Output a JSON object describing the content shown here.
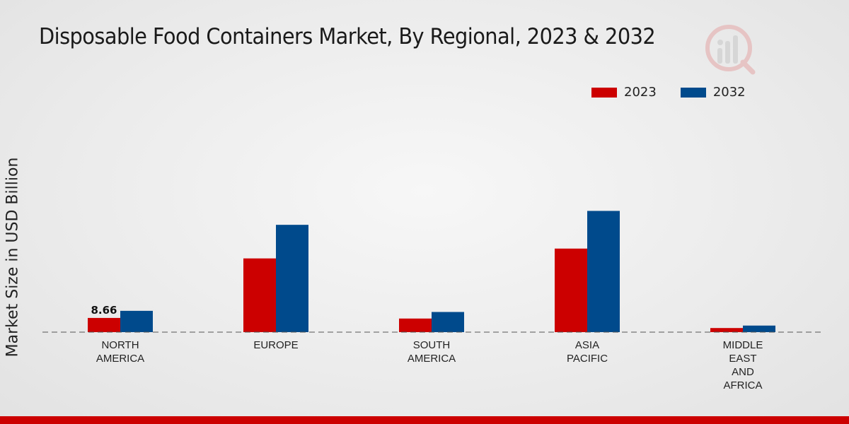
{
  "chart_data": {
    "type": "bar",
    "title": "Disposable Food Containers Market, By Regional, 2023 & 2032",
    "xlabel": "",
    "ylabel": "Market Size in USD Billion",
    "categories": [
      "NORTH\nAMERICA",
      "EUROPE",
      "SOUTH\nAMERICA",
      "ASIA\nPACIFIC",
      "MIDDLE\nEAST\nAND\nAFRICA"
    ],
    "series": [
      {
        "name": "2023",
        "color": "#cc0000",
        "values": [
          8.66,
          45.0,
          8.3,
          51.0,
          2.5
        ]
      },
      {
        "name": "2032",
        "color": "#004a8c",
        "values": [
          13.0,
          65.5,
          12.3,
          74.0,
          4.0
        ]
      }
    ],
    "data_labels": [
      {
        "series": "2023",
        "category_index": 0,
        "text": "8.66"
      }
    ],
    "ylim": [
      0,
      110
    ],
    "grid": false,
    "baseline": "dashed",
    "legend_position": "top-right"
  },
  "colors": {
    "accent": "#cc0000",
    "secondary": "#004a8c"
  }
}
